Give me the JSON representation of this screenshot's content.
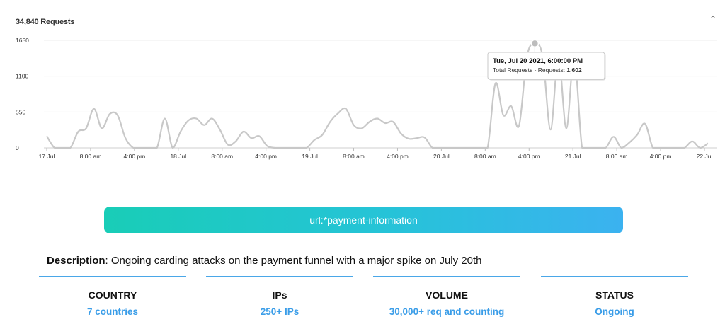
{
  "header": {
    "total_requests": "34,840 Requests",
    "collapse_icon": "chevron-up-icon"
  },
  "chart_data": {
    "type": "area",
    "title": "34,840 Requests",
    "ylim": [
      0,
      1650
    ],
    "y_ticks": [
      "0",
      "550",
      "1100",
      "1650"
    ],
    "x_ticks": [
      "17 Jul",
      "8:00 am",
      "4:00 pm",
      "18 Jul",
      "8:00 am",
      "4:00 pm",
      "19 Jul",
      "8:00 am",
      "4:00 pm",
      "20 Jul",
      "8:00 am",
      "4:00 pm",
      "21 Jul",
      "8:00 am",
      "4:00 pm",
      "22 Jul"
    ],
    "grid": true,
    "line_color": "#c8c8c8",
    "series": [
      {
        "name": "Total Requests - Requests",
        "values": [
          180,
          0,
          0,
          0,
          250,
          300,
          600,
          300,
          520,
          500,
          150,
          0,
          0,
          0,
          0,
          450,
          0,
          250,
          420,
          450,
          350,
          450,
          280,
          50,
          100,
          250,
          150,
          180,
          30,
          0,
          0,
          0,
          0,
          0,
          120,
          200,
          400,
          530,
          600,
          350,
          300,
          400,
          450,
          380,
          400,
          220,
          140,
          150,
          160,
          0,
          0,
          0,
          0,
          0,
          0,
          0,
          0,
          990,
          500,
          640,
          340,
          1400,
          1602,
          1400,
          280,
          1400,
          300,
          1400,
          0,
          0,
          0,
          0,
          170,
          0,
          80,
          200,
          370,
          0,
          0,
          0,
          0,
          0,
          100,
          0,
          70
        ]
      }
    ],
    "tooltip": {
      "title": "Tue, Jul 20 2021, 6:00:00 PM",
      "label": "Total Requests - Requests:",
      "value": "1,602",
      "index": 62
    }
  },
  "filter_pill": {
    "label": "url:*payment-information"
  },
  "description": {
    "label": "Description",
    "text": ": Ongoing carding attacks on the payment funnel with a major spike on July 20th"
  },
  "stats": [
    {
      "label": "COUNTRY",
      "value": "7 countries"
    },
    {
      "label": "IPs",
      "value": "250+ IPs"
    },
    {
      "label": "VOLUME",
      "value": "30,000+ req and counting"
    },
    {
      "label": "STATUS",
      "value": "Ongoing"
    }
  ],
  "accent_color": "#3a9de8"
}
